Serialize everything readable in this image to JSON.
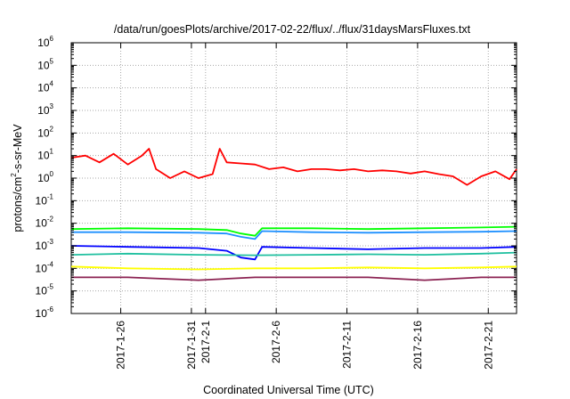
{
  "chart_data": {
    "type": "line",
    "title": "/data/run/goesPlots/archive/2017-02-22/flux/../flux/31daysMarsFluxes.txt",
    "xlabel": "Coordinated Universal Time (UTC)",
    "ylabel_base": "protons/cm",
    "ylabel_sup": "2",
    "ylabel_rest": "-s-sr-MeV",
    "y_scale": "log",
    "ylim": [
      1e-06,
      1000000.0
    ],
    "xlim": [
      "2017-01-22T12:00",
      "2017-02-23T00:00"
    ],
    "grid": true,
    "legend": "none",
    "y_ticks": [
      {
        "base": "10",
        "exp": "-6"
      },
      {
        "base": "10",
        "exp": "-5"
      },
      {
        "base": "10",
        "exp": "-4"
      },
      {
        "base": "10",
        "exp": "-3"
      },
      {
        "base": "10",
        "exp": "-2"
      },
      {
        "base": "10",
        "exp": "-1"
      },
      {
        "base": "10",
        "exp": "0"
      },
      {
        "base": "10",
        "exp": "1"
      },
      {
        "base": "10",
        "exp": "2"
      },
      {
        "base": "10",
        "exp": "3"
      },
      {
        "base": "10",
        "exp": "4"
      },
      {
        "base": "10",
        "exp": "5"
      },
      {
        "base": "10",
        "exp": "6"
      }
    ],
    "x_ticks": [
      {
        "date": "2017-01-26",
        "label": "2017-1-26"
      },
      {
        "date": "2017-01-31",
        "label": "2017-1-31"
      },
      {
        "date": "2017-02-01",
        "label": "2017-2-1"
      },
      {
        "date": "2017-02-06",
        "label": "2017-2-6"
      },
      {
        "date": "2017-02-11",
        "label": "2017-2-11"
      },
      {
        "date": "2017-02-16",
        "label": "2017-2-16"
      },
      {
        "date": "2017-02-21",
        "label": "2017-2-21"
      }
    ],
    "series": [
      {
        "color": "#ff0000",
        "x": [
          "2017-01-22T12:00",
          "2017-01-23T12:00",
          "2017-01-24T12:00",
          "2017-01-25T12:00",
          "2017-01-26T12:00",
          "2017-01-27T12:00",
          "2017-01-28T00:00",
          "2017-01-28T12:00",
          "2017-01-29T12:00",
          "2017-01-30T12:00",
          "2017-01-31T12:00",
          "2017-02-01T12:00",
          "2017-02-02T00:00",
          "2017-02-02T12:00",
          "2017-02-03T12:00",
          "2017-02-04T12:00",
          "2017-02-05T12:00",
          "2017-02-06T12:00",
          "2017-02-07T12:00",
          "2017-02-08T12:00",
          "2017-02-09T12:00",
          "2017-02-10T12:00",
          "2017-02-11T12:00",
          "2017-02-12T12:00",
          "2017-02-13T12:00",
          "2017-02-14T12:00",
          "2017-02-15T12:00",
          "2017-02-16T12:00",
          "2017-02-17T12:00",
          "2017-02-18T12:00",
          "2017-02-19T12:00",
          "2017-02-20T12:00",
          "2017-02-21T12:00",
          "2017-02-22T12:00",
          "2017-02-23T00:00"
        ],
        "y": [
          8,
          10,
          5,
          12,
          4,
          10,
          20,
          2.5,
          1,
          2,
          1,
          1.5,
          20,
          5,
          4.5,
          4,
          2.5,
          3,
          2,
          2.5,
          2.5,
          2.2,
          2.5,
          2,
          2.2,
          2,
          1.6,
          2,
          1.5,
          1.2,
          0.5,
          1.2,
          2,
          0.9,
          2.5
        ]
      },
      {
        "color": "#00ff00",
        "x": [
          "2017-01-22T12:00",
          "2017-01-26T12:00",
          "2017-01-31T12:00",
          "2017-02-02T12:00",
          "2017-02-03T12:00",
          "2017-02-04T12:00",
          "2017-02-05T00:00",
          "2017-02-08T12:00",
          "2017-02-12T12:00",
          "2017-02-16T12:00",
          "2017-02-20T12:00",
          "2017-02-23T00:00"
        ],
        "y": [
          0.0055,
          0.006,
          0.0055,
          0.005,
          0.0035,
          0.0028,
          0.006,
          0.006,
          0.0055,
          0.006,
          0.0065,
          0.007
        ]
      },
      {
        "color": "#1e90ff",
        "x": [
          "2017-01-22T12:00",
          "2017-01-26T12:00",
          "2017-01-31T12:00",
          "2017-02-02T12:00",
          "2017-02-03T12:00",
          "2017-02-04T12:00",
          "2017-02-05T00:00",
          "2017-02-08T12:00",
          "2017-02-12T12:00",
          "2017-02-16T12:00",
          "2017-02-20T12:00",
          "2017-02-23T00:00"
        ],
        "y": [
          0.004,
          0.004,
          0.0038,
          0.0035,
          0.0025,
          0.002,
          0.0045,
          0.004,
          0.0038,
          0.004,
          0.0042,
          0.0045
        ]
      },
      {
        "color": "#0000ff",
        "x": [
          "2017-01-22T12:00",
          "2017-01-26T12:00",
          "2017-01-31T12:00",
          "2017-02-02T12:00",
          "2017-02-03T12:00",
          "2017-02-04T12:00",
          "2017-02-05T00:00",
          "2017-02-08T12:00",
          "2017-02-12T12:00",
          "2017-02-16T12:00",
          "2017-02-20T12:00",
          "2017-02-23T00:00"
        ],
        "y": [
          0.001,
          0.0009,
          0.0008,
          0.0006,
          0.0003,
          0.00025,
          0.0009,
          0.0008,
          0.0007,
          0.0008,
          0.0008,
          0.0009
        ]
      },
      {
        "color": "#20c0a0",
        "x": [
          "2017-01-22T12:00",
          "2017-01-26T12:00",
          "2017-01-31T12:00",
          "2017-02-04T12:00",
          "2017-02-08T12:00",
          "2017-02-12T12:00",
          "2017-02-16T12:00",
          "2017-02-20T12:00",
          "2017-02-23T00:00"
        ],
        "y": [
          0.0004,
          0.00045,
          0.0004,
          0.00038,
          0.0004,
          0.00042,
          0.0004,
          0.00045,
          0.0005
        ]
      },
      {
        "color": "#ffff00",
        "x": [
          "2017-01-22T12:00",
          "2017-01-26T12:00",
          "2017-01-31T12:00",
          "2017-02-04T12:00",
          "2017-02-08T12:00",
          "2017-02-12T12:00",
          "2017-02-16T12:00",
          "2017-02-20T12:00",
          "2017-02-23T00:00"
        ],
        "y": [
          0.00012,
          0.0001,
          9e-05,
          0.0001,
          0.0001,
          0.00011,
          0.0001,
          0.00011,
          0.00012
        ]
      },
      {
        "color": "#8b2252",
        "x": [
          "2017-01-22T12:00",
          "2017-01-26T12:00",
          "2017-01-31T12:00",
          "2017-02-04T12:00",
          "2017-02-08T12:00",
          "2017-02-12T12:00",
          "2017-02-16T12:00",
          "2017-02-20T12:00",
          "2017-02-23T00:00"
        ],
        "y": [
          4e-05,
          4e-05,
          3e-05,
          4e-05,
          4e-05,
          4e-05,
          3e-05,
          4e-05,
          4e-05
        ]
      }
    ]
  }
}
